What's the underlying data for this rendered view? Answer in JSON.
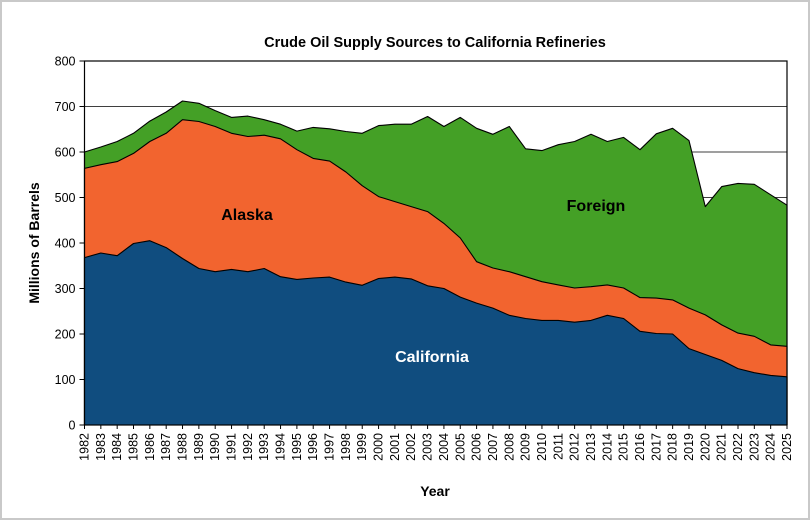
{
  "window": {
    "background": "#ffffff",
    "frame_border_color": "#c9c9c9"
  },
  "chart_data": {
    "type": "area",
    "stacked": true,
    "title": "Crude Oil Supply Sources to California Refineries",
    "xlabel": "Year",
    "ylabel": "Millions of Barrels",
    "ylim": [
      0,
      800
    ],
    "y_tick_step": 100,
    "grid": "horizontal",
    "grid_color": "#3f3f3f",
    "axis_color": "#000000",
    "legend": "inline-area-labels",
    "years": [
      1982,
      1983,
      1984,
      1985,
      1986,
      1987,
      1988,
      1989,
      1990,
      1991,
      1992,
      1993,
      1994,
      1995,
      1996,
      1997,
      1998,
      1999,
      2000,
      2001,
      2002,
      2003,
      2004,
      2005,
      2006,
      2007,
      2008,
      2009,
      2010,
      2011,
      2012,
      2013,
      2014,
      2015,
      2016,
      2017,
      2018,
      2019,
      2020,
      2021,
      2022,
      2023,
      2024,
      2025
    ],
    "series": [
      {
        "name": "California",
        "color": "#104D7F",
        "label_text_color": "#ffffff",
        "values": [
          368,
          378,
          372,
          399,
          405,
          390,
          366,
          344,
          337,
          342,
          337,
          344,
          326,
          320,
          323,
          325,
          314,
          307,
          322,
          325,
          321,
          306,
          300,
          281,
          268,
          257,
          241,
          234,
          230,
          230,
          226,
          230,
          241,
          234,
          206,
          201,
          200,
          168,
          155,
          142,
          124,
          115,
          109,
          106
        ]
      },
      {
        "name": "Alaska",
        "color": "#F2642F",
        "label_text_color": "#000000",
        "values": [
          196,
          194,
          207,
          198,
          218,
          251,
          305,
          323,
          319,
          299,
          297,
          293,
          303,
          285,
          263,
          255,
          242,
          219,
          180,
          166,
          159,
          163,
          143,
          130,
          91,
          88,
          96,
          92,
          85,
          78,
          75,
          74,
          67,
          67,
          74,
          78,
          75,
          89,
          87,
          78,
          78,
          80,
          67,
          67
        ]
      },
      {
        "name": "Foreign",
        "color": "#44A026",
        "label_text_color": "#000000",
        "values": [
          36,
          39,
          44,
          44,
          45,
          47,
          41,
          40,
          35,
          35,
          45,
          34,
          32,
          41,
          68,
          71,
          89,
          115,
          156,
          170,
          181,
          209,
          213,
          265,
          293,
          294,
          319,
          281,
          288,
          308,
          322,
          335,
          315,
          331,
          325,
          361,
          377,
          368,
          238,
          304,
          329,
          334,
          330,
          310
        ]
      }
    ]
  }
}
